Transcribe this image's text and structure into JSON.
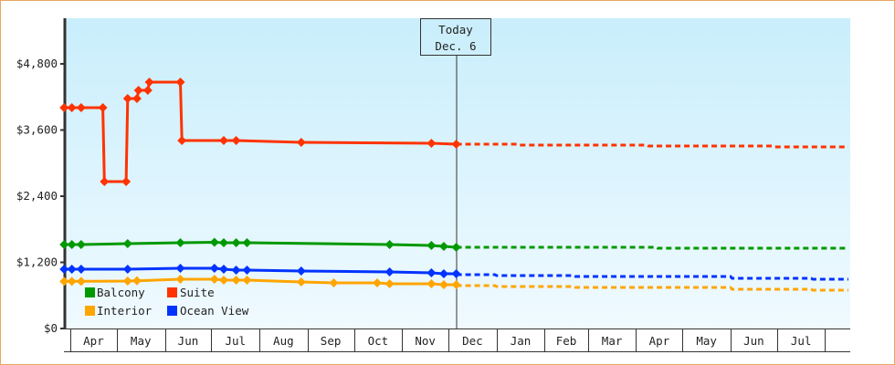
{
  "chart_data": {
    "type": "line",
    "title": "",
    "xlabel": "",
    "ylabel": "",
    "ylim": [
      0,
      5600
    ],
    "y_ticks": [
      0,
      1200,
      2400,
      3600,
      4800
    ],
    "y_tick_labels": [
      "$0",
      "$1,200",
      "$2,400",
      "$3,600",
      "$4,800"
    ],
    "x_tick_labels": [
      "Apr",
      "May",
      "Jun",
      "Jul",
      "Aug",
      "Sep",
      "Oct",
      "Nov",
      "Dec",
      "Jan",
      "Feb",
      "Mar",
      "Apr",
      "May",
      "Jun",
      "Jul"
    ],
    "grid": false,
    "legend_position": "bottom-left",
    "today_marker": {
      "label": "Today",
      "date": "Dec. 6",
      "x": "Dec 6"
    },
    "series": [
      {
        "name": "Suite",
        "color": "#ff3300",
        "x": [
          "Mar 28",
          "Apr 2",
          "Apr 8",
          "Apr 22",
          "Apr 23",
          "May 7",
          "May 8",
          "May 14",
          "May 15",
          "May 21",
          "May 22",
          "Jun 11",
          "Jun 12",
          "Jul 9",
          "Jul 17",
          "Aug 28",
          "Nov 20",
          "Dec 6"
        ],
        "values": [
          4006,
          4006,
          4006,
          4006,
          2665,
          2665,
          4171,
          4171,
          4320,
          4320,
          4469,
          4469,
          3410,
          3410,
          3410,
          3377,
          3360,
          3343
        ],
        "forecast_x": [
          "Dec 6",
          "Jan 14",
          "Jan 15",
          "Apr 8",
          "Apr 9",
          "Jun 28",
          "Jun 29",
          "Aug 16"
        ],
        "forecast_values": [
          3343,
          3343,
          3327,
          3327,
          3310,
          3310,
          3294,
          3294
        ]
      },
      {
        "name": "Balcony",
        "color": "#009900",
        "x": [
          "Mar 28",
          "Apr 2",
          "Apr 8",
          "May 8",
          "Jun 11",
          "Jul 3",
          "Jul 9",
          "Jul 17",
          "Jul 24",
          "Oct 24",
          "Nov 20",
          "Nov 28",
          "Dec 6"
        ],
        "values": [
          1523,
          1523,
          1523,
          1539,
          1556,
          1564,
          1556,
          1556,
          1556,
          1523,
          1506,
          1490,
          1473
        ],
        "forecast_x": [
          "Dec 6",
          "Apr 14",
          "Apr 15",
          "Aug 16"
        ],
        "forecast_values": [
          1473,
          1473,
          1456,
          1456
        ]
      },
      {
        "name": "Ocean View",
        "color": "#0033ff",
        "x": [
          "Mar 28",
          "Apr 2",
          "Apr 8",
          "May 8",
          "Jun 11",
          "Jul 3",
          "Jul 9",
          "Jul 17",
          "Jul 24",
          "Aug 28",
          "Oct 24",
          "Nov 20",
          "Nov 28",
          "Dec 6"
        ],
        "values": [
          1076,
          1076,
          1076,
          1076,
          1092,
          1092,
          1076,
          1059,
          1059,
          1043,
          1026,
          1010,
          993,
          993
        ],
        "forecast_x": [
          "Dec 6",
          "Dec 31",
          "Jan 1",
          "Feb 20",
          "Feb 21",
          "Jun 1",
          "Jun 2",
          "Jul 23",
          "Jul 24",
          "Aug 16"
        ],
        "forecast_values": [
          976,
          976,
          960,
          960,
          943,
          943,
          910,
          910,
          894,
          894
        ]
      },
      {
        "name": "Interior",
        "color": "#ffa500",
        "x": [
          "Mar 28",
          "Apr 2",
          "Apr 8",
          "May 8",
          "May 14",
          "Jun 11",
          "Jul 3",
          "Jul 9",
          "Jul 17",
          "Jul 24",
          "Aug 28",
          "Sep 18",
          "Oct 16",
          "Oct 24",
          "Nov 20",
          "Nov 28",
          "Dec 6"
        ],
        "values": [
          855,
          855,
          855,
          861,
          866,
          894,
          894,
          878,
          878,
          878,
          844,
          828,
          828,
          811,
          811,
          795,
          795
        ],
        "forecast_x": [
          "Dec 6",
          "Dec 31",
          "Jan 1",
          "Feb 20",
          "Feb 21",
          "Jun 1",
          "Jun 2",
          "Jul 23",
          "Jul 24",
          "Aug 16"
        ],
        "forecast_values": [
          778,
          778,
          761,
          761,
          745,
          745,
          712,
          712,
          695,
          695
        ]
      }
    ],
    "legend": [
      {
        "name": "Balcony",
        "color": "#009900"
      },
      {
        "name": "Suite",
        "color": "#ff3300"
      },
      {
        "name": "Interior",
        "color": "#ffa500"
      },
      {
        "name": "Ocean View",
        "color": "#0033ff"
      }
    ]
  }
}
